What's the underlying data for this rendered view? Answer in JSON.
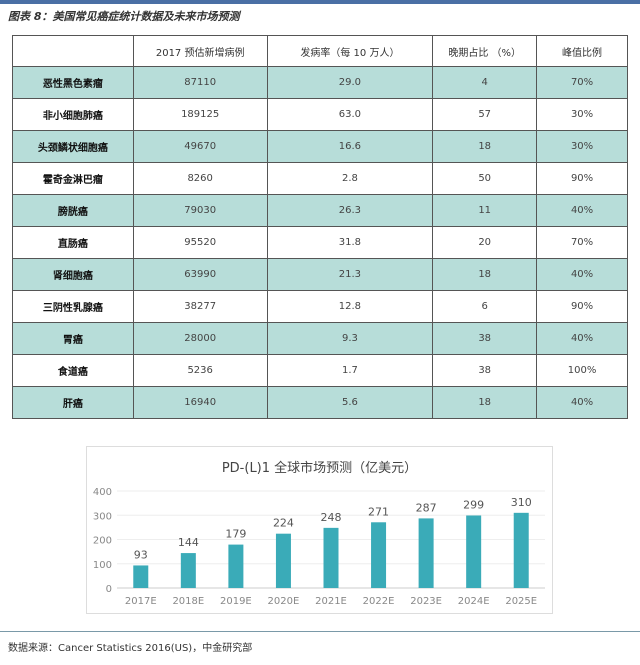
{
  "caption": "图表 8：美国常见癌症统计数据及未来市场预测",
  "table": {
    "headers": [
      "",
      "2017 预估新增病例",
      "发病率（每 10 万人）",
      "晚期占比 （%）",
      "峰值比例"
    ],
    "rows": [
      [
        "恶性黑色素瘤",
        "87110",
        "29.0",
        "4",
        "70%"
      ],
      [
        "非小细胞肺癌",
        "189125",
        "63.0",
        "57",
        "30%"
      ],
      [
        "头颈鳞状细胞癌",
        "49670",
        "16.6",
        "18",
        "30%"
      ],
      [
        "霍奇金淋巴瘤",
        "8260",
        "2.8",
        "50",
        "90%"
      ],
      [
        "膀胱癌",
        "79030",
        "26.3",
        "11",
        "40%"
      ],
      [
        "直肠癌",
        "95520",
        "31.8",
        "20",
        "70%"
      ],
      [
        "肾细胞癌",
        "63990",
        "21.3",
        "18",
        "40%"
      ],
      [
        "三阴性乳腺癌",
        "38277",
        "12.8",
        "6",
        "90%"
      ],
      [
        "胃癌",
        "28000",
        "9.3",
        "38",
        "40%"
      ],
      [
        "食道癌",
        "5236",
        "1.7",
        "38",
        "100%"
      ],
      [
        "肝癌",
        "16940",
        "5.6",
        "18",
        "40%"
      ]
    ]
  },
  "chart_data": {
    "type": "bar",
    "title": "PD-(L)1 全球市场预测（亿美元）",
    "categories": [
      "2017E",
      "2018E",
      "2019E",
      "2020E",
      "2021E",
      "2022E",
      "2023E",
      "2024E",
      "2025E"
    ],
    "values": [
      93,
      144,
      179,
      224,
      248,
      271,
      287,
      299,
      310
    ],
    "yticks": [
      "0",
      "100",
      "200",
      "300",
      "400"
    ],
    "ylim": [
      0,
      400
    ],
    "color": "#3aabb8",
    "grid": true
  },
  "footer": "数据来源：Cancer Statistics 2016(US)，中金研究部"
}
